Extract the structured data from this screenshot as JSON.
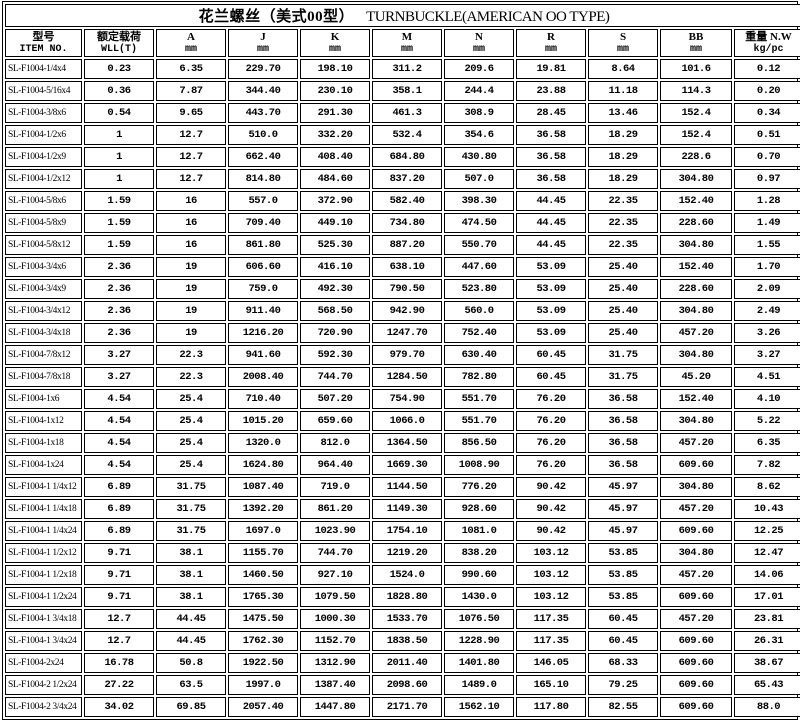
{
  "title": {
    "cn": "花兰螺丝（美式00型）",
    "en": "TURNBUCKLE(AMERICAN OO TYPE)"
  },
  "table": {
    "columns": [
      {
        "line1": "型号",
        "line2": "ITEM NO."
      },
      {
        "line1": "额定载荷",
        "line2": "WLL(T)"
      },
      {
        "line1": "A",
        "line2": "mm"
      },
      {
        "line1": "J",
        "line2": "mm"
      },
      {
        "line1": "K",
        "line2": "mm"
      },
      {
        "line1": "M",
        "line2": "mm"
      },
      {
        "line1": "N",
        "line2": "mm"
      },
      {
        "line1": "R",
        "line2": "mm"
      },
      {
        "line1": "S",
        "line2": "mm"
      },
      {
        "line1": "BB",
        "line2": "mm"
      },
      {
        "line1": "重量 N.W",
        "line2": "kg/pc"
      }
    ],
    "rows": [
      [
        "SL-F1004-1/4x4",
        "0.23",
        "6.35",
        "229.70",
        "198.10",
        "311.2",
        "209.6",
        "19.81",
        "8.64",
        "101.6",
        "0.12"
      ],
      [
        "SL-F1004-5/16x4",
        "0.36",
        "7.87",
        "344.40",
        "230.10",
        "358.1",
        "244.4",
        "23.88",
        "11.18",
        "114.3",
        "0.20"
      ],
      [
        "SL-F1004-3/8x6",
        "0.54",
        "9.65",
        "443.70",
        "291.30",
        "461.3",
        "308.9",
        "28.45",
        "13.46",
        "152.4",
        "0.34"
      ],
      [
        "SL-F1004-1/2x6",
        "1",
        "12.7",
        "510.0",
        "332.20",
        "532.4",
        "354.6",
        "36.58",
        "18.29",
        "152.4",
        "0.51"
      ],
      [
        "SL-F1004-1/2x9",
        "1",
        "12.7",
        "662.40",
        "408.40",
        "684.80",
        "430.80",
        "36.58",
        "18.29",
        "228.6",
        "0.70"
      ],
      [
        "SL-F1004-1/2x12",
        "1",
        "12.7",
        "814.80",
        "484.60",
        "837.20",
        "507.0",
        "36.58",
        "18.29",
        "304.80",
        "0.97"
      ],
      [
        "SL-F1004-5/8x6",
        "1.59",
        "16",
        "557.0",
        "372.90",
        "582.40",
        "398.30",
        "44.45",
        "22.35",
        "152.40",
        "1.28"
      ],
      [
        "SL-F1004-5/8x9",
        "1.59",
        "16",
        "709.40",
        "449.10",
        "734.80",
        "474.50",
        "44.45",
        "22.35",
        "228.60",
        "1.49"
      ],
      [
        "SL-F1004-5/8x12",
        "1.59",
        "16",
        "861.80",
        "525.30",
        "887.20",
        "550.70",
        "44.45",
        "22.35",
        "304.80",
        "1.55"
      ],
      [
        "SL-F1004-3/4x6",
        "2.36",
        "19",
        "606.60",
        "416.10",
        "638.10",
        "447.60",
        "53.09",
        "25.40",
        "152.40",
        "1.70"
      ],
      [
        "SL-F1004-3/4x9",
        "2.36",
        "19",
        "759.0",
        "492.30",
        "790.50",
        "523.80",
        "53.09",
        "25.40",
        "228.60",
        "2.09"
      ],
      [
        "SL-F1004-3/4x12",
        "2.36",
        "19",
        "911.40",
        "568.50",
        "942.90",
        "560.0",
        "53.09",
        "25.40",
        "304.80",
        "2.49"
      ],
      [
        "SL-F1004-3/4x18",
        "2.36",
        "19",
        "1216.20",
        "720.90",
        "1247.70",
        "752.40",
        "53.09",
        "25.40",
        "457.20",
        "3.26"
      ],
      [
        "SL-F1004-7/8x12",
        "3.27",
        "22.3",
        "941.60",
        "592.30",
        "979.70",
        "630.40",
        "60.45",
        "31.75",
        "304.80",
        "3.27"
      ],
      [
        "SL-F1004-7/8x18",
        "3.27",
        "22.3",
        "2008.40",
        "744.70",
        "1284.50",
        "782.80",
        "60.45",
        "31.75",
        "45.20",
        "4.51"
      ],
      [
        "SL-F1004-1x6",
        "4.54",
        "25.4",
        "710.40",
        "507.20",
        "754.90",
        "551.70",
        "76.20",
        "36.58",
        "152.40",
        "4.10"
      ],
      [
        "SL-F1004-1x12",
        "4.54",
        "25.4",
        "1015.20",
        "659.60",
        "1066.0",
        "551.70",
        "76.20",
        "36.58",
        "304.80",
        "5.22"
      ],
      [
        "SL-F1004-1x18",
        "4.54",
        "25.4",
        "1320.0",
        "812.0",
        "1364.50",
        "856.50",
        "76.20",
        "36.58",
        "457.20",
        "6.35"
      ],
      [
        "SL-F1004-1x24",
        "4.54",
        "25.4",
        "1624.80",
        "964.40",
        "1669.30",
        "1008.90",
        "76.20",
        "36.58",
        "609.60",
        "7.82"
      ],
      [
        "SL-F1004-1 1/4x12",
        "6.89",
        "31.75",
        "1087.40",
        "719.0",
        "1144.50",
        "776.20",
        "90.42",
        "45.97",
        "304.80",
        "8.62"
      ],
      [
        "SL-F1004-1 1/4x18",
        "6.89",
        "31.75",
        "1392.20",
        "861.20",
        "1149.30",
        "928.60",
        "90.42",
        "45.97",
        "457.20",
        "10.43"
      ],
      [
        "SL-F1004-1 1/4x24",
        "6.89",
        "31.75",
        "1697.0",
        "1023.90",
        "1754.10",
        "1081.0",
        "90.42",
        "45.97",
        "609.60",
        "12.25"
      ],
      [
        "SL-F1004-1 1/2x12",
        "9.71",
        "38.1",
        "1155.70",
        "744.70",
        "1219.20",
        "838.20",
        "103.12",
        "53.85",
        "304.80",
        "12.47"
      ],
      [
        "SL-F1004-1 1/2x18",
        "9.71",
        "38.1",
        "1460.50",
        "927.10",
        "1524.0",
        "990.60",
        "103.12",
        "53.85",
        "457.20",
        "14.06"
      ],
      [
        "SL-F1004-1 1/2x24",
        "9.71",
        "38.1",
        "1765.30",
        "1079.50",
        "1828.80",
        "1430.0",
        "103.12",
        "53.85",
        "609.60",
        "17.01"
      ],
      [
        "SL-F1004-1 3/4x18",
        "12.7",
        "44.45",
        "1475.50",
        "1000.30",
        "1533.70",
        "1076.50",
        "117.35",
        "60.45",
        "457.20",
        "23.81"
      ],
      [
        "SL-F1004-1 3/4x24",
        "12.7",
        "44.45",
        "1762.30",
        "1152.70",
        "1838.50",
        "1228.90",
        "117.35",
        "60.45",
        "609.60",
        "26.31"
      ],
      [
        "SL-F1004-2x24",
        "16.78",
        "50.8",
        "1922.50",
        "1312.90",
        "2011.40",
        "1401.80",
        "146.05",
        "68.33",
        "609.60",
        "38.67"
      ],
      [
        "SL-F1004-2 1/2x24",
        "27.22",
        "63.5",
        "1997.0",
        "1387.40",
        "2098.60",
        "1489.0",
        "165.10",
        "79.25",
        "609.60",
        "65.43"
      ],
      [
        "SL-F1004-2 3/4x24",
        "34.02",
        "69.85",
        "2057.40",
        "1447.80",
        "2171.70",
        "1562.10",
        "117.80",
        "82.55",
        "609.60",
        "88.0"
      ]
    ]
  },
  "colors": {
    "border": "#000000",
    "text": "#000000",
    "background": "#ffffff"
  }
}
